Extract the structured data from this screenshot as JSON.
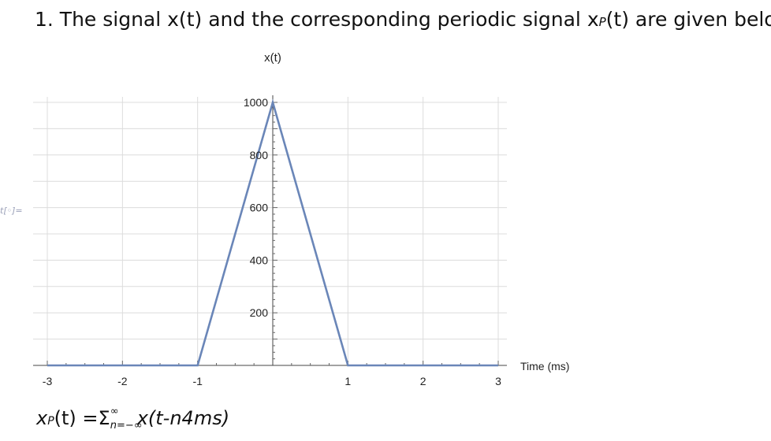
{
  "question": {
    "prefix": "1. The signal x(t) and the corresponding  periodic signal x",
    "sub": "P",
    "suffix": "(t) are given below."
  },
  "output_label": "t[◦]=",
  "chart_data": {
    "type": "line",
    "title": "x(t)",
    "xlabel": "Time (ms)",
    "ylabel": "",
    "xlim": [
      -3,
      3
    ],
    "ylim": [
      0,
      1000
    ],
    "x_ticks": [
      "-3",
      "-2",
      "-1",
      "1",
      "2",
      "3"
    ],
    "y_ticks": [
      "200",
      "400",
      "600",
      "800",
      "1000"
    ],
    "grid": true,
    "series": [
      {
        "x": [
          -3,
          -1,
          0,
          1,
          3
        ],
        "y": [
          0,
          0,
          1000,
          0,
          0
        ]
      }
    ],
    "line_color": "#6a86b8"
  },
  "formula": {
    "lhs": "x",
    "lhs_sub": "P",
    "lhs_rest": "(t) =",
    "sigma": "Σ",
    "upper": "∞",
    "lower": "n=−∞",
    "rhs": "x(t-n4ms)"
  }
}
